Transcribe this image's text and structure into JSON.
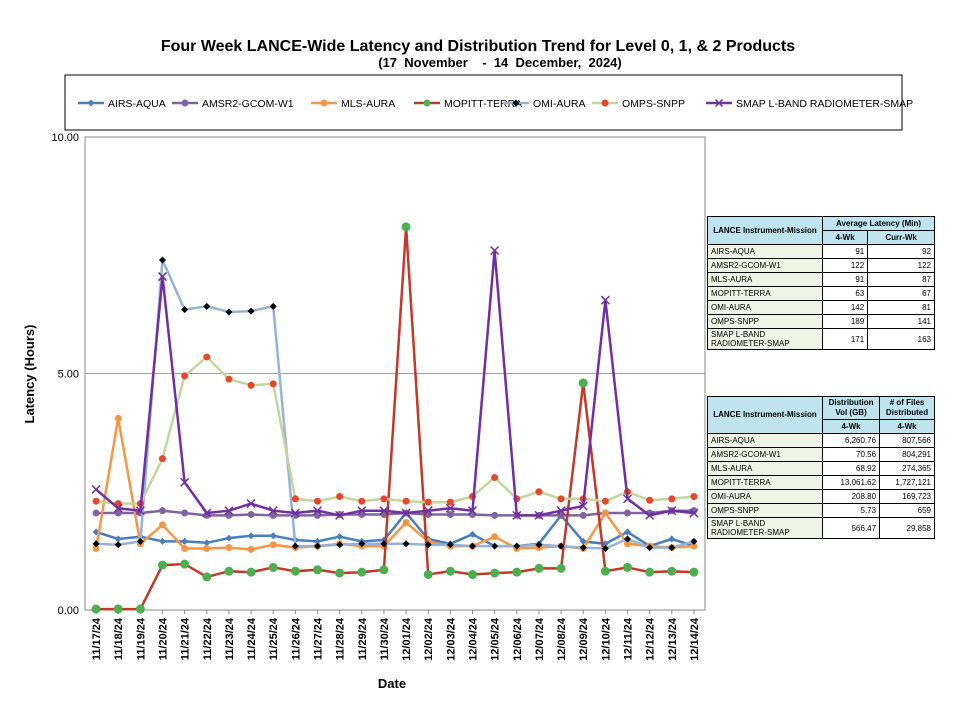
{
  "chart_data": {
    "type": "line",
    "title": "Four Week LANCE-Wide Latency and Distribution Trend for Level 0, 1, & 2 Products",
    "subtitle": "(17  November    -  14  December,  2024)",
    "xlabel": "Date",
    "ylabel": "Latency (Hours)",
    "ylim": [
      0,
      10
    ],
    "yticks": [
      "0.00",
      "5.00",
      "10.00"
    ],
    "grid": true,
    "legend_position": "top",
    "categories": [
      "11/17/24",
      "11/18/24",
      "11/19/24",
      "11/20/24",
      "11/21/24",
      "11/22/24",
      "11/23/24",
      "11/24/24",
      "11/25/24",
      "11/26/24",
      "11/27/24",
      "11/28/24",
      "11/29/24",
      "11/30/24",
      "12/01/24",
      "12/02/24",
      "12/03/24",
      "12/04/24",
      "12/05/24",
      "12/06/24",
      "12/07/24",
      "12/08/24",
      "12/09/24",
      "12/10/24",
      "12/11/24",
      "12/12/24",
      "12/13/24",
      "12/14/24"
    ],
    "series": [
      {
        "name": "AIRS-AQUA",
        "color": "#4a7ebb",
        "marker": "diamond",
        "values": [
          1.65,
          1.5,
          1.55,
          1.45,
          1.45,
          1.42,
          1.52,
          1.57,
          1.57,
          1.48,
          1.45,
          1.55,
          1.45,
          1.48,
          2.05,
          1.5,
          1.4,
          1.6,
          1.35,
          1.35,
          1.4,
          2.0,
          1.45,
          1.4,
          1.65,
          1.35,
          1.5,
          1.35
        ]
      },
      {
        "name": "AMSR2-GCOM-W1",
        "color": "#8064a2",
        "marker": "circle",
        "values": [
          2.05,
          2.05,
          2.05,
          2.1,
          2.05,
          2.0,
          2.0,
          2.02,
          2.0,
          2.0,
          2.0,
          2.02,
          2.02,
          2.02,
          2.05,
          2.02,
          2.02,
          2.02,
          2.0,
          2.0,
          2.0,
          2.0,
          2.0,
          2.05,
          2.05,
          2.05,
          2.1,
          2.1
        ]
      },
      {
        "name": "MLS-AURA",
        "color": "#f79646",
        "marker": "circle",
        "values": [
          1.3,
          4.05,
          1.4,
          1.8,
          1.3,
          1.3,
          1.32,
          1.28,
          1.38,
          1.32,
          1.35,
          1.4,
          1.35,
          1.35,
          1.85,
          1.45,
          1.35,
          1.35,
          1.55,
          1.3,
          1.32,
          1.35,
          1.3,
          2.05,
          1.4,
          1.35,
          1.32,
          1.35
        ]
      },
      {
        "name": "MOPITT-TERRA",
        "color": "#c0392b",
        "marker": "circle",
        "markerColor": "#4caf50",
        "values": [
          0.02,
          0.02,
          0.02,
          0.95,
          0.97,
          0.7,
          0.82,
          0.8,
          0.9,
          0.82,
          0.85,
          0.78,
          0.8,
          0.85,
          8.1,
          0.75,
          0.82,
          0.75,
          0.78,
          0.8,
          0.88,
          0.88,
          4.8,
          0.82,
          0.9,
          0.8,
          0.82,
          0.8
        ]
      },
      {
        "name": "OMI-AURA",
        "color": "#95b3d7",
        "marker": "diamond",
        "markerColor": "#000000",
        "values": [
          1.4,
          1.38,
          1.45,
          7.4,
          6.35,
          6.42,
          6.3,
          6.32,
          6.42,
          1.35,
          1.35,
          1.38,
          1.4,
          1.4,
          1.4,
          1.38,
          1.38,
          1.35,
          1.35,
          1.35,
          1.38,
          1.35,
          1.32,
          1.3,
          1.5,
          1.32,
          1.32,
          1.45
        ]
      },
      {
        "name": "OMPS-SNPP",
        "color": "#c3d69b",
        "marker": "circle",
        "markerColor": "#e8462a",
        "values": [
          2.3,
          2.25,
          2.25,
          3.2,
          4.95,
          5.35,
          4.88,
          4.75,
          4.78,
          2.35,
          2.3,
          2.4,
          2.3,
          2.35,
          2.3,
          2.28,
          2.28,
          2.4,
          2.8,
          2.35,
          2.5,
          2.35,
          2.35,
          2.3,
          2.5,
          2.32,
          2.35,
          2.4
        ]
      },
      {
        "name": "SMAP L-BAND RADIOMETER-SMAP",
        "color": "#7030a0",
        "marker": "x",
        "values": [
          2.55,
          2.15,
          2.1,
          7.05,
          2.7,
          2.05,
          2.1,
          2.25,
          2.1,
          2.05,
          2.1,
          2.0,
          2.1,
          2.1,
          2.05,
          2.1,
          2.15,
          2.1,
          7.6,
          2.0,
          2.0,
          2.1,
          2.2,
          6.55,
          2.35,
          2.0,
          2.1,
          2.05
        ]
      }
    ]
  },
  "latency_table": {
    "h_mission": "LANCE Instrument-Mission",
    "h_avg": "Average Latency (Min)",
    "h_4wk": "4-Wk",
    "h_curr": "Curr-Wk",
    "rows": [
      {
        "name": "AIRS-AQUA",
        "wk4": "91",
        "curr": "92"
      },
      {
        "name": "AMSR2-GCOM-W1",
        "wk4": "122",
        "curr": "122"
      },
      {
        "name": "MLS-AURA",
        "wk4": "91",
        "curr": "87"
      },
      {
        "name": "MOPITT-TERRA",
        "wk4": "63",
        "curr": "67"
      },
      {
        "name": "OMI-AURA",
        "wk4": "142",
        "curr": "81"
      },
      {
        "name": "OMPS-SNPP",
        "wk4": "189",
        "curr": "141"
      },
      {
        "name": "SMAP L-BAND RADIOMETER-SMAP",
        "wk4": "171",
        "curr": "163"
      }
    ]
  },
  "distribution_table": {
    "h_mission": "LANCE Instrument-Mission",
    "h_vol": "Distribution Vol (GB)",
    "h_files": "# of Files Distributed",
    "h_4wk_a": "4-Wk",
    "h_4wk_b": "4-Wk",
    "rows": [
      {
        "name": "AIRS-AQUA",
        "vol": "6,260.76",
        "files": "807,566"
      },
      {
        "name": "AMSR2-GCOM-W1",
        "vol": "70.56",
        "files": "804,291"
      },
      {
        "name": "MLS-AURA",
        "vol": "68.92",
        "files": "274,365"
      },
      {
        "name": "MOPITT-TERRA",
        "vol": "13,061.62",
        "files": "1,727,121"
      },
      {
        "name": "OMI-AURA",
        "vol": "208.80",
        "files": "169,723"
      },
      {
        "name": "OMPS-SNPP",
        "vol": "5.73",
        "files": "659"
      },
      {
        "name": "SMAP L-BAND RADIOMETER-SMAP",
        "vol": "566.47",
        "files": "29,858"
      }
    ]
  }
}
